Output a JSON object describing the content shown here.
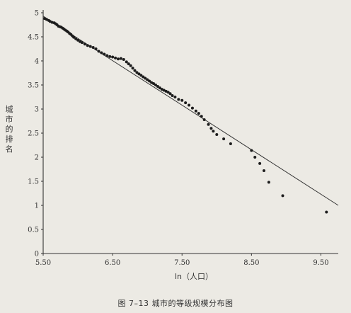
{
  "chart_data": {
    "type": "scatter",
    "title": "",
    "caption": "图 7–13   城市的等级规模分布图",
    "xlabel": "ln（人口）",
    "ylabel": "城市的排名",
    "xlim": [
      5.5,
      9.75
    ],
    "ylim": [
      0,
      5
    ],
    "x_ticks": [
      "5.50",
      "6.50",
      "7.50",
      "8.50",
      "9.50"
    ],
    "y_ticks": [
      "0",
      "0.5",
      "1",
      "1.5",
      "2",
      "2.5",
      "3",
      "3.5",
      "4",
      "4.5",
      "5"
    ],
    "trend_line": {
      "x": [
        5.5,
        9.75
      ],
      "y": [
        4.93,
        1.0
      ]
    },
    "points": [
      [
        5.52,
        4.88
      ],
      [
        5.55,
        4.86
      ],
      [
        5.58,
        4.84
      ],
      [
        5.6,
        4.82
      ],
      [
        5.63,
        4.8
      ],
      [
        5.66,
        4.79
      ],
      [
        5.68,
        4.77
      ],
      [
        5.7,
        4.75
      ],
      [
        5.72,
        4.72
      ],
      [
        5.74,
        4.71
      ],
      [
        5.76,
        4.7
      ],
      [
        5.78,
        4.68
      ],
      [
        5.8,
        4.66
      ],
      [
        5.82,
        4.64
      ],
      [
        5.84,
        4.62
      ],
      [
        5.86,
        4.6
      ],
      [
        5.88,
        4.57
      ],
      [
        5.9,
        4.55
      ],
      [
        5.92,
        4.52
      ],
      [
        5.94,
        4.49
      ],
      [
        5.97,
        4.46
      ],
      [
        6.0,
        4.43
      ],
      [
        6.03,
        4.4
      ],
      [
        6.06,
        4.38
      ],
      [
        6.1,
        4.35
      ],
      [
        6.14,
        4.32
      ],
      [
        6.18,
        4.3
      ],
      [
        6.22,
        4.28
      ],
      [
        6.26,
        4.25
      ],
      [
        6.3,
        4.2
      ],
      [
        6.34,
        4.17
      ],
      [
        6.38,
        4.14
      ],
      [
        6.42,
        4.11
      ],
      [
        6.46,
        4.09
      ],
      [
        6.5,
        4.08
      ],
      [
        6.54,
        4.06
      ],
      [
        6.58,
        4.04
      ],
      [
        6.62,
        4.05
      ],
      [
        6.66,
        4.03
      ],
      [
        6.7,
        3.98
      ],
      [
        6.73,
        3.94
      ],
      [
        6.76,
        3.9
      ],
      [
        6.79,
        3.85
      ],
      [
        6.82,
        3.8
      ],
      [
        6.85,
        3.76
      ],
      [
        6.88,
        3.73
      ],
      [
        6.91,
        3.7
      ],
      [
        6.94,
        3.67
      ],
      [
        6.97,
        3.64
      ],
      [
        7.0,
        3.61
      ],
      [
        7.03,
        3.58
      ],
      [
        7.06,
        3.55
      ],
      [
        7.09,
        3.53
      ],
      [
        7.12,
        3.5
      ],
      [
        7.15,
        3.47
      ],
      [
        7.18,
        3.44
      ],
      [
        7.21,
        3.41
      ],
      [
        7.24,
        3.39
      ],
      [
        7.27,
        3.37
      ],
      [
        7.3,
        3.35
      ],
      [
        7.33,
        3.32
      ],
      [
        7.36,
        3.28
      ],
      [
        7.4,
        3.25
      ],
      [
        7.45,
        3.2
      ],
      [
        7.5,
        3.18
      ],
      [
        7.55,
        3.13
      ],
      [
        7.6,
        3.08
      ],
      [
        7.65,
        3.02
      ],
      [
        7.7,
        2.96
      ],
      [
        7.74,
        2.91
      ],
      [
        7.78,
        2.85
      ],
      [
        7.82,
        2.78
      ],
      [
        7.88,
        2.68
      ],
      [
        7.92,
        2.6
      ],
      [
        7.95,
        2.54
      ],
      [
        8.0,
        2.47
      ],
      [
        8.1,
        2.38
      ],
      [
        8.2,
        2.28
      ],
      [
        8.5,
        2.14
      ],
      [
        8.55,
        2.0
      ],
      [
        8.62,
        1.87
      ],
      [
        8.68,
        1.72
      ],
      [
        8.75,
        1.48
      ],
      [
        8.95,
        1.2
      ],
      [
        9.58,
        0.86
      ]
    ]
  }
}
